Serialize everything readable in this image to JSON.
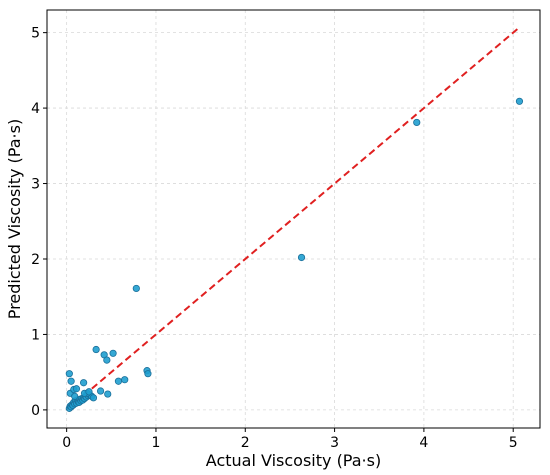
{
  "chart_data": {
    "type": "scatter",
    "title": "",
    "xlabel": "Actual Viscosity (Pa·s)",
    "ylabel": "Predicted Viscosity (Pa·s)",
    "xlim": [
      -0.22,
      5.3
    ],
    "ylim": [
      -0.24,
      5.3
    ],
    "xticks": [
      0,
      1,
      2,
      3,
      4,
      5
    ],
    "yticks": [
      0,
      1,
      2,
      3,
      4,
      5
    ],
    "grid": true,
    "legend": "none",
    "colors": {
      "points": "#1f9fcf",
      "point_edge": "#1a6f9a",
      "reference_line": "#e02020",
      "grid": "#d9d9d9",
      "axes": "#000000"
    },
    "series": [
      {
        "points": [
          [
            0.03,
            0.02
          ],
          [
            0.04,
            0.05
          ],
          [
            0.05,
            0.04
          ],
          [
            0.06,
            0.07
          ],
          [
            0.07,
            0.06
          ],
          [
            0.08,
            0.1
          ],
          [
            0.09,
            0.08
          ],
          [
            0.1,
            0.12
          ],
          [
            0.11,
            0.09
          ],
          [
            0.12,
            0.13
          ],
          [
            0.13,
            0.11
          ],
          [
            0.14,
            0.1
          ],
          [
            0.15,
            0.14
          ],
          [
            0.16,
            0.12
          ],
          [
            0.17,
            0.15
          ],
          [
            0.18,
            0.13
          ],
          [
            0.19,
            0.16
          ],
          [
            0.2,
            0.15
          ],
          [
            0.21,
            0.18
          ],
          [
            0.22,
            0.17
          ],
          [
            0.24,
            0.19
          ],
          [
            0.26,
            0.2
          ],
          [
            0.28,
            0.18
          ],
          [
            0.3,
            0.16
          ],
          [
            0.23,
            0.22
          ],
          [
            0.03,
            0.48
          ],
          [
            0.05,
            0.38
          ],
          [
            0.04,
            0.22
          ],
          [
            0.08,
            0.27
          ],
          [
            0.11,
            0.28
          ],
          [
            0.09,
            0.18
          ],
          [
            0.19,
            0.36
          ],
          [
            0.2,
            0.22
          ],
          [
            0.25,
            0.24
          ],
          [
            0.33,
            0.8
          ],
          [
            0.38,
            0.25
          ],
          [
            0.42,
            0.73
          ],
          [
            0.45,
            0.66
          ],
          [
            0.46,
            0.21
          ],
          [
            0.52,
            0.75
          ],
          [
            0.58,
            0.38
          ],
          [
            0.65,
            0.4
          ],
          [
            0.78,
            1.61
          ],
          [
            0.9,
            0.52
          ],
          [
            0.91,
            0.48
          ],
          [
            2.63,
            2.02
          ],
          [
            3.92,
            3.81
          ],
          [
            5.07,
            4.09
          ]
        ]
      }
    ],
    "reference_line": {
      "style": "dashed",
      "from": [
        0,
        0
      ],
      "to": [
        5.07,
        5.07
      ]
    }
  }
}
